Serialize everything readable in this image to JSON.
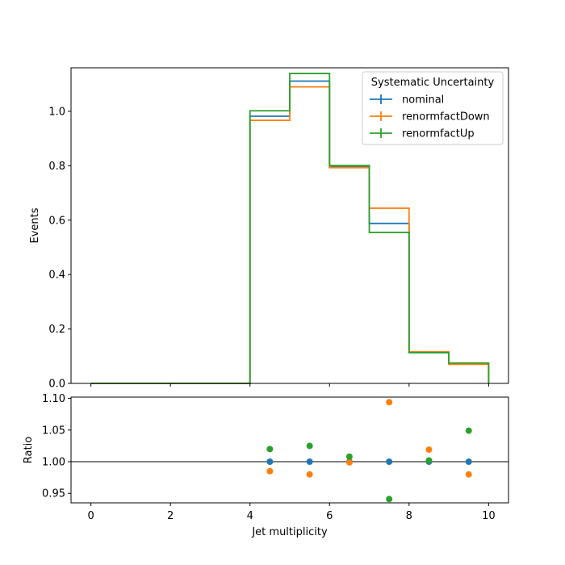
{
  "chart_data": {
    "type": "step",
    "legend": {
      "title": "Systematic Uncertainty",
      "placement": "top-right"
    },
    "x_edges": [
      0,
      1,
      2,
      3,
      4,
      5,
      6,
      7,
      8,
      9,
      10
    ],
    "xlabel": "Jet multiplicity",
    "xlim": [
      -0.5,
      10.5
    ],
    "xticks": [
      0,
      2,
      4,
      6,
      8,
      10
    ],
    "top": {
      "ylabel": "Events",
      "ylim": [
        0,
        1.16
      ],
      "yticks": [
        0.0,
        0.2,
        0.4,
        0.6,
        0.8,
        1.0
      ],
      "series": [
        {
          "name": "nominal",
          "color": "#1f77b4",
          "values": [
            0,
            0,
            0,
            0,
            0.982,
            1.111,
            0.796,
            0.588,
            0.113,
            0.072
          ]
        },
        {
          "name": "renormfactDown",
          "color": "#ff7f0e",
          "values": [
            0,
            0,
            0,
            0,
            0.967,
            1.09,
            0.793,
            0.644,
            0.116,
            0.07
          ]
        },
        {
          "name": "renormfactUp",
          "color": "#2ca02c",
          "values": [
            0,
            0,
            0,
            0,
            1.002,
            1.139,
            0.801,
            0.555,
            0.113,
            0.075
          ]
        }
      ]
    },
    "bottom": {
      "ylabel": "Ratio",
      "ylim": [
        0.935,
        1.102
      ],
      "yticks": [
        0.95,
        1.0,
        1.05,
        1.1
      ],
      "ytick_labels": [
        "0.95",
        "1.00",
        "1.05",
        "1.10"
      ],
      "reference_line": 1.0,
      "x": [
        4.5,
        5.5,
        6.5,
        7.5,
        8.5,
        9.5
      ],
      "series": [
        {
          "name": "nominal",
          "color": "#1f77b4",
          "values": [
            1.0,
            1.0,
            1.0,
            1.0,
            1.0,
            1.0
          ]
        },
        {
          "name": "renormfactDown",
          "color": "#ff7f0e",
          "values": [
            0.985,
            0.98,
            0.999,
            1.094,
            1.019,
            0.98
          ]
        },
        {
          "name": "renormfactUp",
          "color": "#2ca02c",
          "values": [
            1.02,
            1.025,
            1.008,
            0.941,
            1.002,
            1.049
          ]
        }
      ]
    }
  }
}
